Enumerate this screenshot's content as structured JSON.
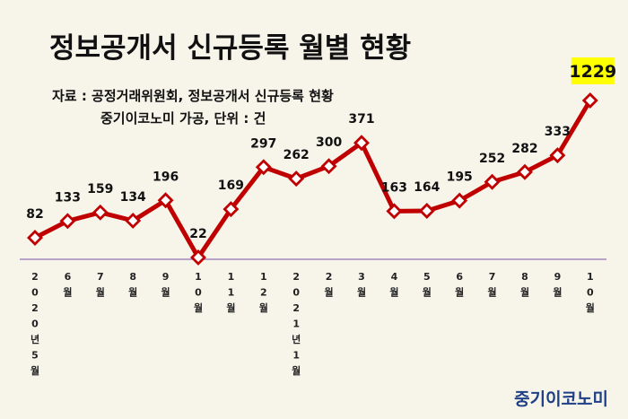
{
  "title": "정보공개서 신규등록 월별 현황",
  "source_line1": "자료 : 공정거래위원회, 정보공개서 신규등록 현황",
  "source_line2": "중기이코노미 가공, 단위 : 건",
  "brand": "중기이코노미",
  "chart_data": {
    "type": "line",
    "categories": [
      "2020년5월",
      "6월",
      "7월",
      "8월",
      "9월",
      "10월",
      "11월",
      "12월",
      "2021년1월",
      "2월",
      "3월",
      "4월",
      "5월",
      "6월",
      "7월",
      "8월",
      "9월",
      "10월"
    ],
    "values": [
      82,
      133,
      159,
      134,
      196,
      22,
      169,
      297,
      262,
      300,
      371,
      163,
      164,
      195,
      252,
      282,
      333,
      1229
    ],
    "data_labels": [
      "82",
      "133",
      "159",
      "134",
      "196",
      "22",
      "169",
      "297",
      "262",
      "300",
      "371",
      "163",
      "164",
      "195",
      "252",
      "282",
      "333",
      "1229"
    ],
    "highlight_index": 17,
    "line_color": "#c00000",
    "highlight_color": "#ffff00",
    "axis_color": "#7b4fa7"
  }
}
